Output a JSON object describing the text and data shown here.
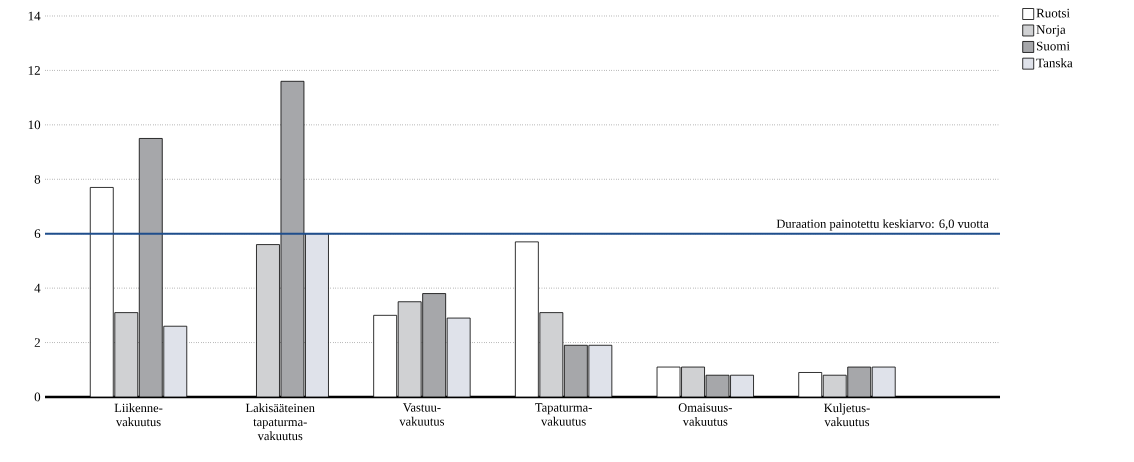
{
  "chart_data": {
    "type": "bar",
    "categories": [
      "Liikenne-vakuutus",
      "Lakisääteinen tapaturma-vakuutus",
      "Vastuu-vakuutus",
      "Tapaturma-vakuutus",
      "Omaisuus-vakuutus",
      "Kuljetus-vakuutus"
    ],
    "series": [
      {
        "name": "Ruotsi",
        "color": "#ffffff",
        "values": [
          7.7,
          null,
          3.0,
          5.7,
          1.1,
          0.9
        ]
      },
      {
        "name": "Norja",
        "color": "#d0d1d3",
        "values": [
          3.1,
          5.6,
          3.5,
          3.1,
          1.1,
          0.8
        ]
      },
      {
        "name": "Suomi",
        "color": "#a6a7aa",
        "values": [
          9.5,
          11.6,
          3.8,
          1.9,
          0.8,
          1.1
        ]
      },
      {
        "name": "Tanska",
        "color": "#dfe2ea",
        "values": [
          2.6,
          6.0,
          2.9,
          1.9,
          0.8,
          1.1
        ]
      }
    ],
    "ylim": [
      0,
      14
    ],
    "yticks": [
      0,
      2,
      4,
      6,
      8,
      10,
      12,
      14
    ],
    "grid": "y",
    "legend": "top right",
    "ref_lines": [
      {
        "axis": "y",
        "value": 6.0,
        "label": "Duraation painotettu keskiarvo: 6,0 vuotta",
        "color": "#1f4e8c"
      }
    ]
  }
}
